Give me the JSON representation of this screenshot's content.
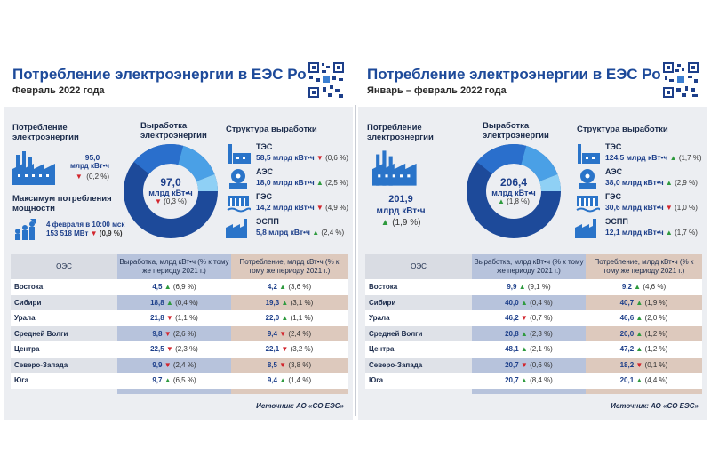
{
  "left": {
    "title": "Потребление электроэнергии в ЕЭС России",
    "subtitle": "Февраль 2022 года",
    "consumption": {
      "label": "Потребление электроэнергии",
      "value": "95,0",
      "unit": "млрд кВт•ч",
      "change": "(0,2 %)",
      "dir": "down"
    },
    "maximum": {
      "label": "Максимум потребления мощности",
      "date": "4 февраля в 10:00 мск",
      "value": "153 518 МВт",
      "change": "(0,9 %)",
      "dir": "down"
    },
    "generation": {
      "label": "Выработка электроэнергии",
      "value": "97,0",
      "unit": "млрд кВт•ч",
      "change": "(0,3 %)",
      "dir": "down"
    },
    "structure": {
      "label": "Структура выработки",
      "items": [
        {
          "name": "ТЭС",
          "value": "58,5 млрд кВт•ч",
          "change": "(0,6 %)",
          "dir": "down"
        },
        {
          "name": "АЭС",
          "value": "18,0 млрд кВт•ч",
          "change": "(2,5 %)",
          "dir": "up"
        },
        {
          "name": "ГЭС",
          "value": "14,2 млрд кВт•ч",
          "change": "(4,9 %)",
          "dir": "down"
        },
        {
          "name": "ЭСПП",
          "value": "5,8 млрд кВт•ч",
          "change": "(2,4 %)",
          "dir": "up"
        }
      ]
    },
    "table": {
      "headers": [
        "ОЭС",
        "Выработка, млрд кВт•ч (% к тому же периоду 2021 г.)",
        "Потребление, млрд кВт•ч (% к тому же периоду 2021 г.)"
      ],
      "rows": [
        {
          "name": "Востока",
          "gen": "4,5",
          "gen_dir": "up",
          "gen_pct": "(6,9 %)",
          "con": "4,2",
          "con_dir": "up",
          "con_pct": "(3,6 %)"
        },
        {
          "name": "Сибири",
          "gen": "18,8",
          "gen_dir": "up",
          "gen_pct": "(0,4 %)",
          "con": "19,3",
          "con_dir": "up",
          "con_pct": "(3,1 %)"
        },
        {
          "name": "Урала",
          "gen": "21,8",
          "gen_dir": "down",
          "gen_pct": "(1,1 %)",
          "con": "22,0",
          "con_dir": "up",
          "con_pct": "(1,1 %)"
        },
        {
          "name": "Средней Волги",
          "gen": "9,8",
          "gen_dir": "down",
          "gen_pct": "(2,6 %)",
          "con": "9,4",
          "con_dir": "down",
          "con_pct": "(2,4 %)"
        },
        {
          "name": "Центра",
          "gen": "22,5",
          "gen_dir": "down",
          "gen_pct": "(2,3 %)",
          "con": "22,1",
          "con_dir": "down",
          "con_pct": "(3,2 %)"
        },
        {
          "name": "Северо-Запада",
          "gen": "9,9",
          "gen_dir": "down",
          "gen_pct": "(2,4 %)",
          "con": "8,5",
          "con_dir": "down",
          "con_pct": "(3,8 %)"
        },
        {
          "name": "Юга",
          "gen": "9,7",
          "gen_dir": "up",
          "gen_pct": "(6,5 %)",
          "con": "9,4",
          "con_dir": "up",
          "con_pct": "(1,4 %)"
        }
      ]
    },
    "source": "Источник: АО «СО ЕЭС»"
  },
  "right": {
    "title": "Потребление электроэнергии в ЕЭС России",
    "subtitle": "Январь – февраль 2022 года",
    "consumption": {
      "label": "Потребление электроэнергии",
      "value": "201,9",
      "unit": "млрд кВт•ч",
      "change": "(1,9 %)",
      "dir": "up"
    },
    "generation": {
      "label": "Выработка электроэнергии",
      "value": "206,4",
      "unit": "млрд кВт•ч",
      "change": "(1,8 %)",
      "dir": "up"
    },
    "structure": {
      "label": "Структура выработки",
      "items": [
        {
          "name": "ТЭС",
          "value": "124,5 млрд кВт•ч",
          "change": "(1,7 %)",
          "dir": "up"
        },
        {
          "name": "АЭС",
          "value": "38,0 млрд кВт•ч",
          "change": "(2,9 %)",
          "dir": "up"
        },
        {
          "name": "ГЭС",
          "value": "30,6 млрд кВт•ч",
          "change": "(1,0 %)",
          "dir": "down"
        },
        {
          "name": "ЭСПП",
          "value": "12,1 млрд кВт•ч",
          "change": "(1,7 %)",
          "dir": "up"
        }
      ]
    },
    "table": {
      "headers": [
        "ОЭС",
        "Выработка, млрд кВт•ч (% к тому же периоду 2021 г.)",
        "Потребление, млрд кВт•ч (% к тому же периоду 2021 г.)"
      ],
      "rows": [
        {
          "name": "Востока",
          "gen": "9,9",
          "gen_dir": "up",
          "gen_pct": "(9,1 %)",
          "con": "9,2",
          "con_dir": "up",
          "con_pct": "(4,6 %)"
        },
        {
          "name": "Сибири",
          "gen": "40,0",
          "gen_dir": "up",
          "gen_pct": "(0,4 %)",
          "con": "40,7",
          "con_dir": "up",
          "con_pct": "(1,9 %)"
        },
        {
          "name": "Урала",
          "gen": "46,2",
          "gen_dir": "down",
          "gen_pct": "(0,7 %)",
          "con": "46,6",
          "con_dir": "up",
          "con_pct": "(2,0 %)"
        },
        {
          "name": "Средней Волги",
          "gen": "20,8",
          "gen_dir": "up",
          "gen_pct": "(2,3 %)",
          "con": "20,0",
          "con_dir": "up",
          "con_pct": "(1,2 %)"
        },
        {
          "name": "Центра",
          "gen": "48,1",
          "gen_dir": "up",
          "gen_pct": "(2,1 %)",
          "con": "47,2",
          "con_dir": "up",
          "con_pct": "(1,2 %)"
        },
        {
          "name": "Северо-Запада",
          "gen": "20,7",
          "gen_dir": "down",
          "gen_pct": "(0,6 %)",
          "con": "18,2",
          "con_dir": "down",
          "con_pct": "(0,1 %)"
        },
        {
          "name": "Юга",
          "gen": "20,7",
          "gen_dir": "up",
          "gen_pct": "(8,4 %)",
          "con": "20,1",
          "con_dir": "up",
          "con_pct": "(4,4 %)"
        }
      ]
    },
    "source": "Источник: АО «СО ЕЭС»"
  },
  "colors": {
    "accent": "#1d4a9a",
    "up": "#2e9a3e",
    "down": "#d2262e",
    "gen_col": "#b7c3dc",
    "con_col": "#ddc9bd",
    "panel_bg": "#eceef2"
  }
}
